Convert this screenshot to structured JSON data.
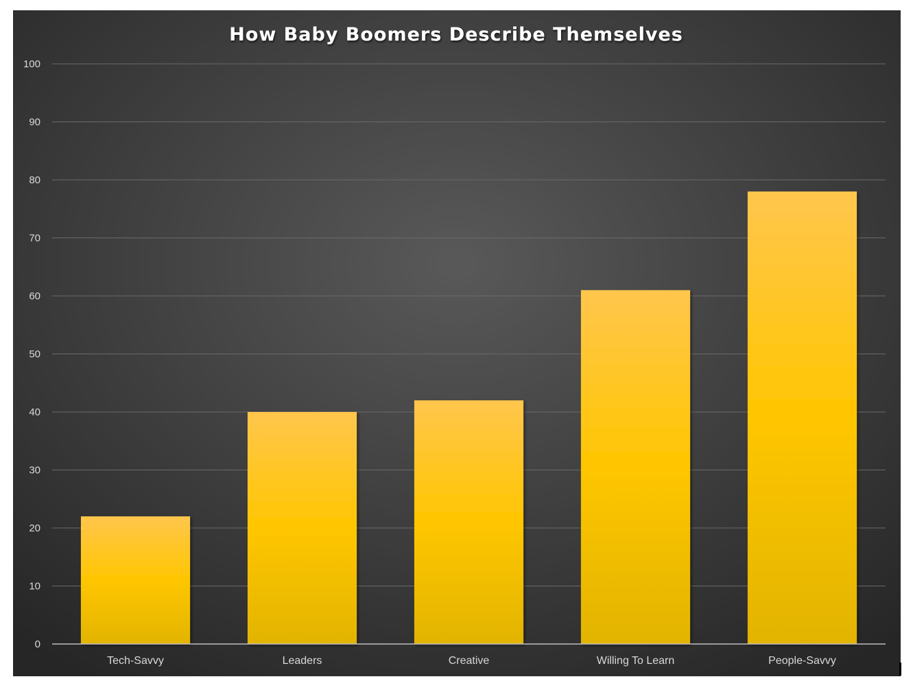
{
  "chart_data": {
    "type": "bar",
    "title": "How Baby Boomers Describe Themselves",
    "xlabel": "",
    "ylabel": "",
    "categories": [
      "Tech-Savvy",
      "Leaders",
      "Creative",
      "Willing To Learn",
      "People-Savvy"
    ],
    "values": [
      22,
      40,
      42,
      61,
      78
    ],
    "ylim": [
      0,
      100
    ],
    "yticks": [
      "0",
      "10",
      "20",
      "30",
      "40",
      "50",
      "60",
      "70",
      "80",
      "90",
      "100"
    ],
    "grid": true,
    "legend": "none",
    "colors": {
      "bar_top": "#ffc64d",
      "bar_mid": "#ffc600",
      "bar_bottom": "#e2b400",
      "background_center": "#595959",
      "background_edge": "#262626"
    }
  }
}
